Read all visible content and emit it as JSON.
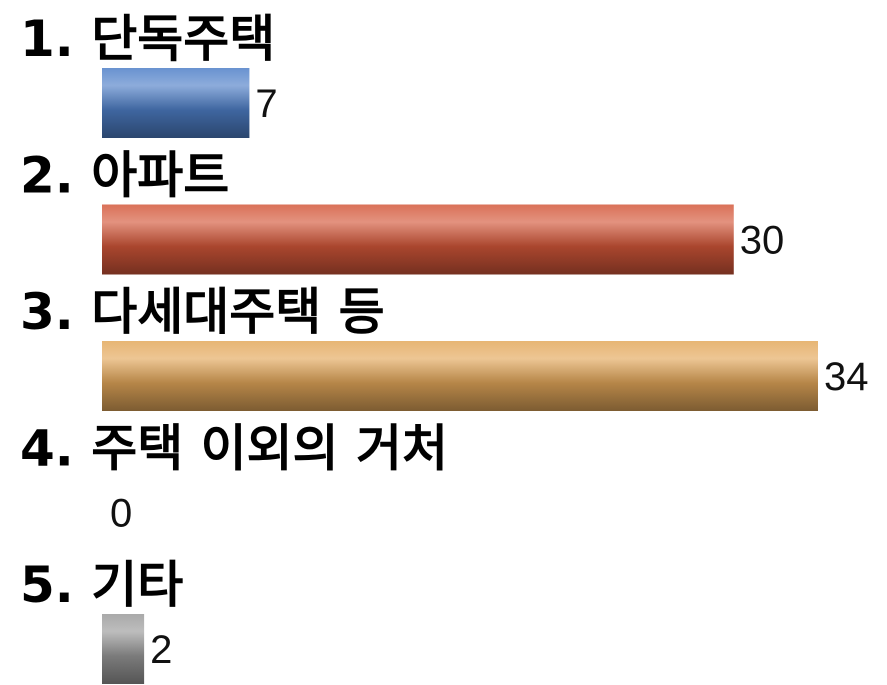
{
  "chart_data": {
    "type": "bar",
    "orientation": "horizontal",
    "categories": [
      "1. 단독주택",
      "2. 아파트",
      "3. 다세대주택 등",
      "4. 주택 이외의 거처",
      "5. 기타"
    ],
    "values": [
      7,
      30,
      34,
      0,
      2
    ],
    "value_labels": [
      "7",
      "30",
      "34",
      "0",
      "2"
    ],
    "colors": [
      "#4f7fc8",
      "#d4583a",
      "#e3a85a",
      "#999999",
      "#9a9a9a"
    ],
    "xlim": [
      0,
      34
    ],
    "title": "",
    "xlabel": "",
    "ylabel": "",
    "grid": false,
    "legend": "none"
  }
}
